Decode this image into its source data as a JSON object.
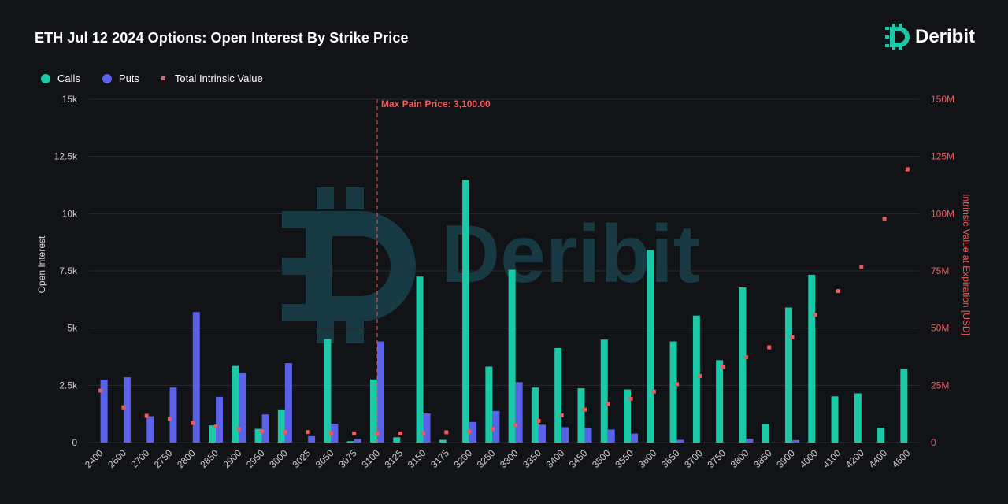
{
  "title": "ETH Jul 12 2024 Options: Open Interest By Strike Price",
  "brand": "Deribit",
  "watermark": "Deribit",
  "legend": {
    "calls": "Calls",
    "puts": "Puts",
    "intrinsic": "Total Intrinsic Value"
  },
  "colors": {
    "calls": "#19c9a8",
    "puts": "#5a62ea",
    "intrinsic": "#f05a5a",
    "background": "#121317",
    "grid": "#2a2c31",
    "watermark": "#183a44"
  },
  "chart_data": {
    "type": "bar",
    "categories": [
      "2400",
      "2600",
      "2700",
      "2750",
      "2800",
      "2850",
      "2900",
      "2950",
      "3000",
      "3025",
      "3050",
      "3075",
      "3100",
      "3125",
      "3150",
      "3175",
      "3200",
      "3250",
      "3300",
      "3350",
      "3400",
      "3450",
      "3500",
      "3550",
      "3600",
      "3650",
      "3700",
      "3750",
      "3800",
      "3850",
      "3900",
      "4000",
      "4100",
      "4200",
      "4400",
      "4600"
    ],
    "series": [
      {
        "name": "Calls",
        "axis": "left",
        "values": [
          0,
          0,
          0,
          0,
          0,
          750,
          3350,
          600,
          1450,
          0,
          4520,
          60,
          2760,
          230,
          7250,
          120,
          11470,
          3320,
          7550,
          2400,
          4130,
          2370,
          4500,
          2320,
          8410,
          4420,
          5550,
          3600,
          6780,
          820,
          5900,
          7330,
          2020,
          2150,
          650,
          3220
        ]
      },
      {
        "name": "Puts",
        "axis": "left",
        "values": [
          2750,
          2850,
          1150,
          2400,
          5700,
          2000,
          3030,
          1230,
          3470,
          280,
          820,
          160,
          4420,
          0,
          1270,
          0,
          900,
          1380,
          2640,
          780,
          670,
          640,
          570,
          390,
          0,
          120,
          0,
          0,
          170,
          0,
          110,
          0,
          0,
          0,
          0,
          0
        ]
      },
      {
        "name": "Total Intrinsic Value",
        "axis": "right",
        "type": "scatter",
        "values": [
          22.7,
          15.4,
          11.7,
          10.4,
          8.6,
          7.0,
          5.8,
          4.9,
          4.6,
          4.6,
          4.1,
          4.0,
          4.0,
          4.0,
          4.1,
          4.5,
          4.8,
          5.9,
          7.7,
          9.5,
          11.9,
          14.4,
          16.9,
          19.1,
          22.3,
          25.5,
          29.1,
          33.0,
          37.3,
          41.6,
          46.0,
          55.8,
          66.2,
          76.8,
          97.9,
          119.4
        ]
      }
    ],
    "y_left": {
      "label": "Open Interest",
      "ylim": [
        0,
        15000
      ],
      "ticks": [
        0,
        2500,
        5000,
        7500,
        10000,
        12500,
        15000
      ],
      "tick_labels": [
        "0",
        "2.5k",
        "5k",
        "7.5k",
        "10k",
        "12.5k",
        "15k"
      ]
    },
    "y_right": {
      "label": "Intrinsic Value at Expiration [USD]",
      "ylim": [
        0,
        150
      ],
      "ticks": [
        0,
        25,
        50,
        75,
        100,
        125,
        150
      ],
      "tick_labels": [
        "0",
        "25M",
        "50M",
        "75M",
        "100M",
        "125M",
        "150M"
      ]
    },
    "annotation": {
      "x": "3100",
      "text": "Max Pain Price: 3,100.00"
    },
    "grid": true,
    "legend_position": "top-left"
  }
}
